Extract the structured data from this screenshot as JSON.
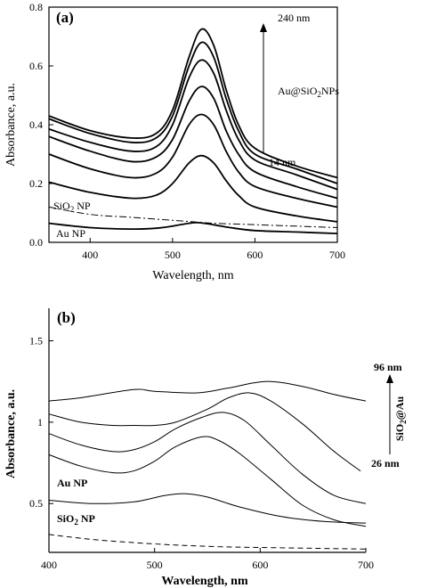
{
  "chart_data": [
    {
      "type": "line",
      "panel_label": "(a)",
      "xlabel": "Wavelength, nm",
      "ylabel": "Absorbance, a.u.",
      "xlim": [
        350,
        700
      ],
      "ylim": [
        0,
        0.8
      ],
      "xticks": [
        400,
        500,
        600,
        700
      ],
      "yticks": [
        0.0,
        0.2,
        0.4,
        0.6,
        0.8
      ],
      "grid": false,
      "annotations": {
        "top_size": "240 nm",
        "bottom_size": "14 nm",
        "series_label_pre": "Au@SiO",
        "series_label_sub": "2",
        "series_label_post": "NPs",
        "sio2_label_pre": "SiO",
        "sio2_label_sub": "2",
        "sio2_label_post": " NP",
        "au_label": "Au NP"
      },
      "series": [
        {
          "style": "solid",
          "points": [
            [
              350,
              0.43
            ],
            [
              400,
              0.38
            ],
            [
              450,
              0.355
            ],
            [
              480,
              0.37
            ],
            [
              500,
              0.45
            ],
            [
              520,
              0.63
            ],
            [
              535,
              0.725
            ],
            [
              550,
              0.67
            ],
            [
              565,
              0.52
            ],
            [
              580,
              0.4
            ],
            [
              600,
              0.32
            ],
            [
              650,
              0.26
            ],
            [
              700,
              0.22
            ]
          ]
        },
        {
          "style": "solid",
          "points": [
            [
              350,
              0.42
            ],
            [
              400,
              0.37
            ],
            [
              450,
              0.34
            ],
            [
              480,
              0.355
            ],
            [
              500,
              0.43
            ],
            [
              520,
              0.6
            ],
            [
              535,
              0.68
            ],
            [
              550,
              0.63
            ],
            [
              565,
              0.49
            ],
            [
              580,
              0.38
            ],
            [
              600,
              0.3
            ],
            [
              650,
              0.25
            ],
            [
              700,
              0.2
            ]
          ]
        },
        {
          "style": "solid",
          "points": [
            [
              350,
              0.385
            ],
            [
              400,
              0.34
            ],
            [
              450,
              0.31
            ],
            [
              480,
              0.325
            ],
            [
              500,
              0.4
            ],
            [
              520,
              0.56
            ],
            [
              535,
              0.62
            ],
            [
              550,
              0.575
            ],
            [
              565,
              0.45
            ],
            [
              580,
              0.35
            ],
            [
              600,
              0.28
            ],
            [
              650,
              0.23
            ],
            [
              700,
              0.18
            ]
          ]
        },
        {
          "style": "solid",
          "points": [
            [
              350,
              0.36
            ],
            [
              400,
              0.31
            ],
            [
              450,
              0.275
            ],
            [
              480,
              0.29
            ],
            [
              500,
              0.35
            ],
            [
              520,
              0.48
            ],
            [
              535,
              0.53
            ],
            [
              550,
              0.49
            ],
            [
              565,
              0.38
            ],
            [
              580,
              0.3
            ],
            [
              600,
              0.24
            ],
            [
              650,
              0.19
            ],
            [
              700,
              0.15
            ]
          ]
        },
        {
          "style": "solid",
          "points": [
            [
              350,
              0.3
            ],
            [
              400,
              0.25
            ],
            [
              450,
              0.22
            ],
            [
              480,
              0.235
            ],
            [
              500,
              0.29
            ],
            [
              520,
              0.4
            ],
            [
              535,
              0.435
            ],
            [
              550,
              0.4
            ],
            [
              565,
              0.31
            ],
            [
              580,
              0.24
            ],
            [
              600,
              0.19
            ],
            [
              650,
              0.15
            ],
            [
              700,
              0.12
            ]
          ]
        },
        {
          "style": "solid",
          "points": [
            [
              350,
              0.205
            ],
            [
              400,
              0.17
            ],
            [
              450,
              0.15
            ],
            [
              480,
              0.16
            ],
            [
              500,
              0.2
            ],
            [
              520,
              0.27
            ],
            [
              535,
              0.295
            ],
            [
              550,
              0.27
            ],
            [
              565,
              0.21
            ],
            [
              580,
              0.16
            ],
            [
              600,
              0.12
            ],
            [
              650,
              0.09
            ],
            [
              700,
              0.07
            ]
          ]
        },
        {
          "style": "dashdot",
          "points": [
            [
              350,
              0.12
            ],
            [
              400,
              0.095
            ],
            [
              450,
              0.085
            ],
            [
              500,
              0.075
            ],
            [
              550,
              0.065
            ],
            [
              600,
              0.06
            ],
            [
              650,
              0.055
            ],
            [
              700,
              0.05
            ]
          ]
        },
        {
          "style": "solid",
          "points": [
            [
              350,
              0.065
            ],
            [
              400,
              0.05
            ],
            [
              450,
              0.045
            ],
            [
              480,
              0.048
            ],
            [
              500,
              0.055
            ],
            [
              520,
              0.065
            ],
            [
              530,
              0.067
            ],
            [
              545,
              0.062
            ],
            [
              570,
              0.05
            ],
            [
              600,
              0.04
            ],
            [
              650,
              0.035
            ],
            [
              700,
              0.03
            ]
          ]
        }
      ]
    },
    {
      "type": "line",
      "panel_label": "(b)",
      "xlabel": "Wavelength, nm",
      "ylabel": "Absorbance, a.u.",
      "xlim": [
        400,
        700
      ],
      "ylim": [
        0.2,
        1.7
      ],
      "xticks": [
        400,
        500,
        600,
        700
      ],
      "yticks": [
        0.5,
        1.0,
        1.5
      ],
      "ytick_labels": [
        "0.5",
        "1",
        "1.5"
      ],
      "grid": false,
      "annotations": {
        "top_size": "96 nm",
        "bottom_size": "26 nm",
        "series_label_pre": "SiO",
        "series_label_sub": "2",
        "series_label_post": "@Au",
        "au_label": "Au NP",
        "sio2_label_pre": "SiO",
        "sio2_label_sub": "2",
        "sio2_label_post": " NP"
      },
      "series": [
        {
          "style": "solid",
          "points": [
            [
              400,
              1.13
            ],
            [
              430,
              1.15
            ],
            [
              480,
              1.2
            ],
            [
              500,
              1.19
            ],
            [
              540,
              1.18
            ],
            [
              570,
              1.21
            ],
            [
              605,
              1.25
            ],
            [
              640,
              1.22
            ],
            [
              670,
              1.17
            ],
            [
              700,
              1.13
            ]
          ]
        },
        {
          "style": "solid",
          "points": [
            [
              400,
              1.05
            ],
            [
              430,
              1.0
            ],
            [
              460,
              0.98
            ],
            [
              480,
              0.98
            ],
            [
              500,
              0.98
            ],
            [
              520,
              1.0
            ],
            [
              550,
              1.08
            ],
            [
              570,
              1.15
            ],
            [
              590,
              1.18
            ],
            [
              610,
              1.13
            ],
            [
              640,
              0.99
            ],
            [
              670,
              0.82
            ],
            [
              695,
              0.7
            ]
          ]
        },
        {
          "style": "solid",
          "points": [
            [
              400,
              0.93
            ],
            [
              430,
              0.86
            ],
            [
              460,
              0.82
            ],
            [
              480,
              0.83
            ],
            [
              500,
              0.88
            ],
            [
              520,
              0.96
            ],
            [
              545,
              1.03
            ],
            [
              565,
              1.06
            ],
            [
              585,
              1.01
            ],
            [
              610,
              0.86
            ],
            [
              640,
              0.68
            ],
            [
              670,
              0.55
            ],
            [
              700,
              0.5
            ]
          ]
        },
        {
          "style": "solid",
          "points": [
            [
              400,
              0.8
            ],
            [
              430,
              0.73
            ],
            [
              460,
              0.69
            ],
            [
              480,
              0.7
            ],
            [
              500,
              0.76
            ],
            [
              520,
              0.85
            ],
            [
              545,
              0.91
            ],
            [
              560,
              0.89
            ],
            [
              580,
              0.81
            ],
            [
              610,
              0.65
            ],
            [
              640,
              0.49
            ],
            [
              670,
              0.4
            ],
            [
              700,
              0.36
            ]
          ]
        },
        {
          "style": "solid",
          "points": [
            [
              400,
              0.52
            ],
            [
              440,
              0.5
            ],
            [
              480,
              0.51
            ],
            [
              510,
              0.55
            ],
            [
              530,
              0.56
            ],
            [
              550,
              0.54
            ],
            [
              580,
              0.48
            ],
            [
              620,
              0.42
            ],
            [
              660,
              0.39
            ],
            [
              700,
              0.38
            ]
          ]
        },
        {
          "style": "dashed",
          "points": [
            [
              400,
              0.31
            ],
            [
              440,
              0.28
            ],
            [
              480,
              0.26
            ],
            [
              520,
              0.245
            ],
            [
              560,
              0.235
            ],
            [
              600,
              0.23
            ],
            [
              650,
              0.225
            ],
            [
              700,
              0.22
            ]
          ]
        }
      ]
    }
  ]
}
